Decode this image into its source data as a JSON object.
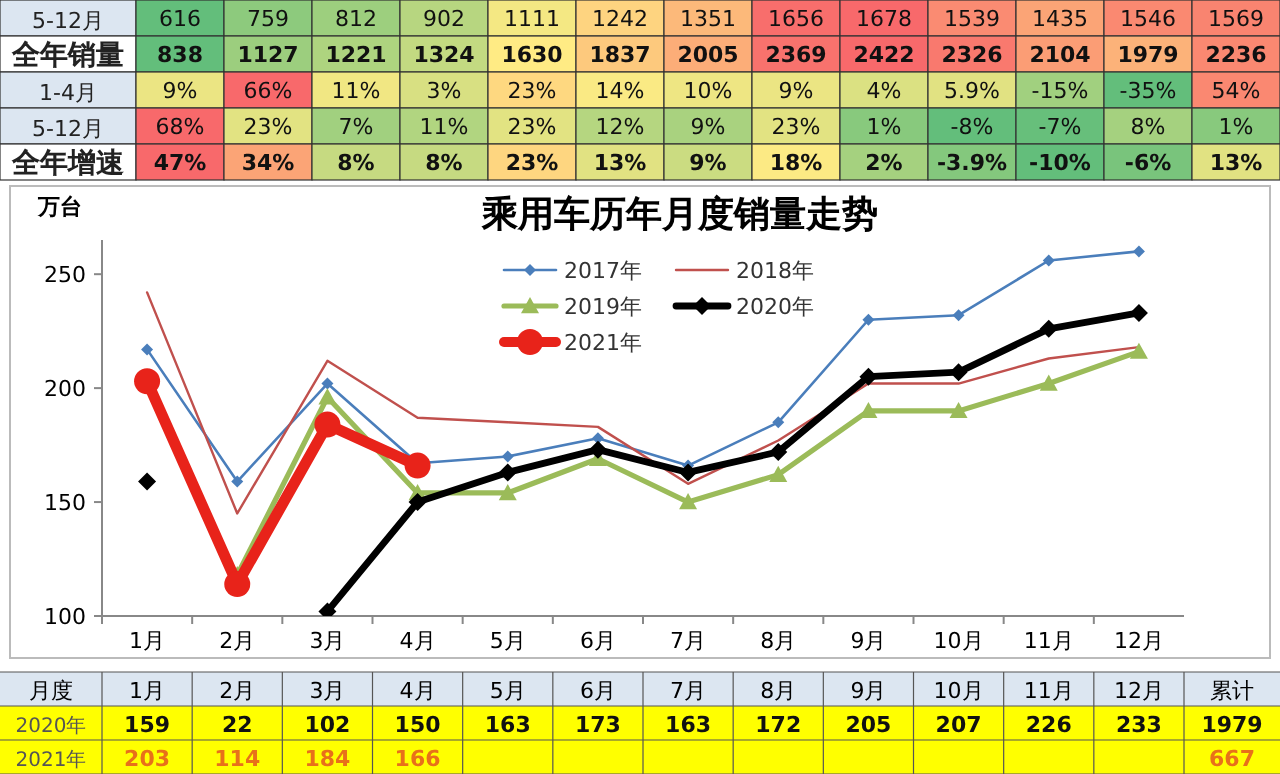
{
  "chart_data": [
    {
      "type": "heatmap",
      "categories": [
        null,
        null,
        null,
        null,
        null,
        null,
        null,
        null,
        null,
        null,
        null,
        null,
        null
      ],
      "y_categories": [
        "5-12月",
        "全年销量",
        "1-4月",
        "5-12月",
        "全年增速"
      ],
      "cells": [
        [
          616,
          759,
          812,
          902,
          1111,
          1242,
          1351,
          1656,
          1678,
          1539,
          1435,
          1546,
          1569
        ],
        [
          838,
          1127,
          1221,
          1324,
          1630,
          1837,
          2005,
          2369,
          2422,
          2326,
          2104,
          1979,
          2236
        ],
        [
          9,
          66,
          11,
          3,
          23,
          14,
          10,
          9,
          4,
          5.9,
          -15,
          -35,
          54
        ],
        [
          68,
          23,
          7,
          11,
          23,
          12,
          9,
          23,
          1,
          -8,
          -7,
          8,
          1
        ],
        [
          47,
          34,
          8,
          8,
          23,
          13,
          9,
          18,
          2,
          -3.9,
          -10,
          -6,
          13
        ]
      ],
      "cell_labels": [
        [
          "616",
          "759",
          "812",
          "902",
          "1111",
          "1242",
          "1351",
          "1656",
          "1678",
          "1539",
          "1435",
          "1546",
          "1569"
        ],
        [
          "838",
          "1127",
          "1221",
          "1324",
          "1630",
          "1837",
          "2005",
          "2369",
          "2422",
          "2326",
          "2104",
          "1979",
          "2236"
        ],
        [
          "9%",
          "66%",
          "11%",
          "3%",
          "23%",
          "14%",
          "10%",
          "9%",
          "4%",
          "5.9%",
          "-15%",
          "-35%",
          "54%"
        ],
        [
          "68%",
          "23%",
          "7%",
          "11%",
          "23%",
          "12%",
          "9%",
          "23%",
          "1%",
          "-8%",
          "-7%",
          "8%",
          "1%"
        ],
        [
          "47%",
          "34%",
          "8%",
          "8%",
          "23%",
          "13%",
          "9%",
          "18%",
          "2%",
          "-3.9%",
          "-10%",
          "-6%",
          "13%"
        ]
      ]
    },
    {
      "type": "line",
      "title": "乘用车历年月度销量走势",
      "ylabel": "万台",
      "categories": [
        "1月",
        "2月",
        "3月",
        "4月",
        "5月",
        "6月",
        "7月",
        "8月",
        "9月",
        "10月",
        "11月",
        "12月"
      ],
      "ylim": [
        100,
        265
      ],
      "yticks": [
        100,
        150,
        200,
        250
      ],
      "grid": false,
      "legend": "top",
      "line_style": "solid",
      "series": [
        {
          "name": "2017年",
          "color": "#4a7ebb",
          "marker": "diamond",
          "values": [
            217,
            159,
            202,
            167,
            170,
            178,
            166,
            185,
            230,
            232,
            256,
            260
          ]
        },
        {
          "name": "2018年",
          "color": "#c0504d",
          "marker": "none",
          "values": [
            242,
            145,
            212,
            187,
            185,
            183,
            158,
            177,
            202,
            202,
            213,
            218
          ]
        },
        {
          "name": "2019年",
          "color": "#9bbb59",
          "marker": "triangle",
          "values": [
            null,
            118,
            196,
            154,
            154,
            169,
            150,
            162,
            190,
            190,
            202,
            216
          ]
        },
        {
          "name": "2020年",
          "color": "#000000",
          "marker": "diamond",
          "values": [
            159,
            null,
            102,
            150,
            163,
            173,
            163,
            172,
            205,
            207,
            226,
            233
          ],
          "value_labels": [
            "159",
            null,
            "102",
            "150",
            "163",
            "173",
            "163",
            "172",
            "205",
            "207",
            "226",
            "233"
          ]
        },
        {
          "name": "2021年",
          "color": "#e8231a",
          "marker": "circle",
          "values": [
            203,
            114,
            184,
            166,
            null,
            null,
            null,
            null,
            null,
            null,
            null,
            null
          ],
          "value_labels": [
            "203",
            "114",
            "184",
            "166",
            null,
            null,
            null,
            null,
            null,
            null,
            null,
            null
          ]
        }
      ],
      "annotations": [
        "月度",
        "累计",
        "22",
        "1979",
        "667"
      ]
    }
  ]
}
